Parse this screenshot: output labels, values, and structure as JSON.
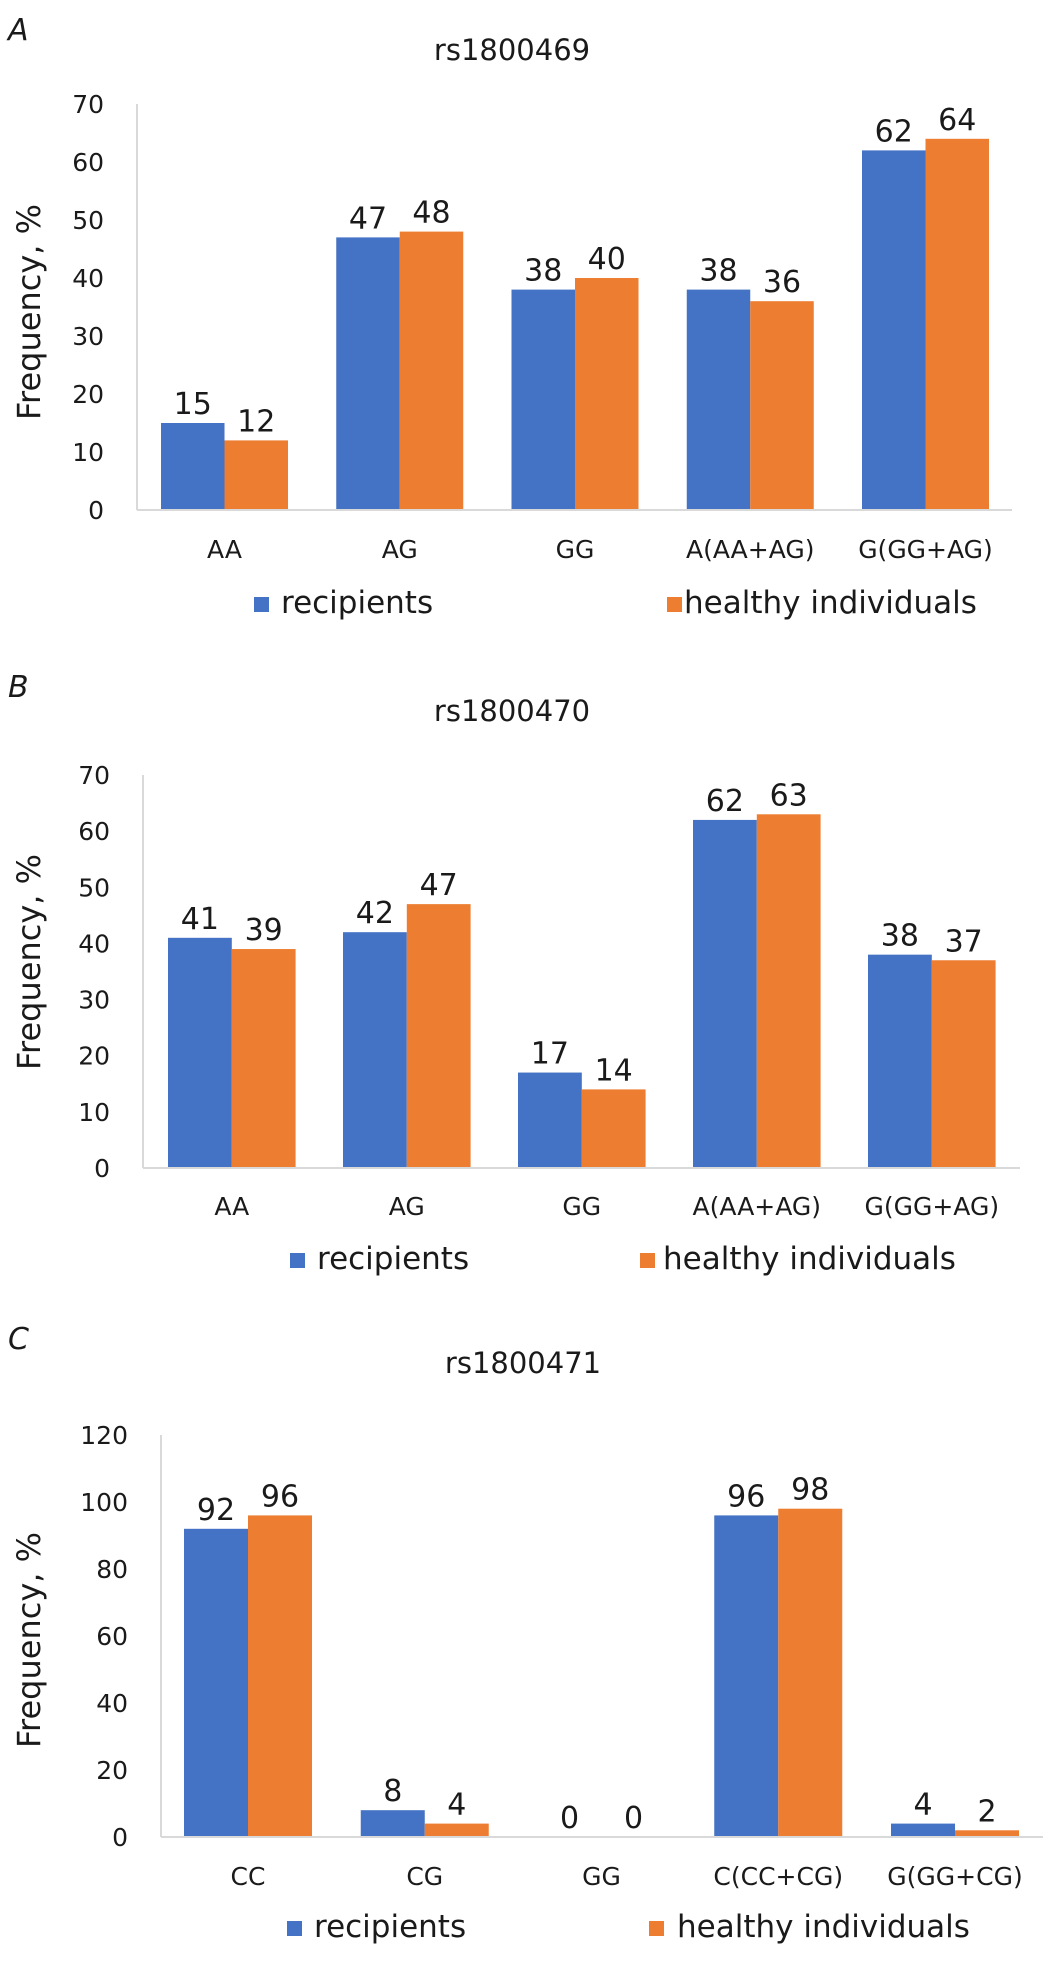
{
  "colors": {
    "recipients": "#4472c4",
    "healthy": "#ed7d31",
    "axis": "#d9d9d9",
    "text": "#1a1a1a"
  },
  "chart_data": [
    {
      "type": "bar",
      "panel": "A",
      "title": "rs1800469",
      "xlabel": "",
      "ylabel": "Frequency, %",
      "ylim": [
        0,
        70
      ],
      "yticks": [
        0,
        10,
        20,
        30,
        40,
        50,
        60,
        70
      ],
      "grid": false,
      "legend_position": "bottom",
      "categories": [
        "AA",
        "AG",
        "GG",
        "A(AA+AG)",
        "G(GG+AG)"
      ],
      "series": [
        {
          "name": "recipients",
          "color": "#4472c4",
          "values": [
            15,
            47,
            38,
            38,
            62
          ]
        },
        {
          "name": "healthy individuals",
          "color": "#ed7d31",
          "values": [
            12,
            48,
            40,
            36,
            64
          ]
        }
      ]
    },
    {
      "type": "bar",
      "panel": "B",
      "title": "rs1800470",
      "xlabel": "",
      "ylabel": "Frequency, %",
      "ylim": [
        0,
        70
      ],
      "yticks": [
        0,
        10,
        20,
        30,
        40,
        50,
        60,
        70
      ],
      "grid": false,
      "legend_position": "bottom",
      "categories": [
        "AA",
        "AG",
        "GG",
        "A(AA+AG)",
        "G(GG+AG)"
      ],
      "series": [
        {
          "name": "recipients",
          "color": "#4472c4",
          "values": [
            41,
            42,
            17,
            62,
            38
          ]
        },
        {
          "name": "healthy individuals",
          "color": "#ed7d31",
          "values": [
            39,
            47,
            14,
            63,
            37
          ]
        }
      ]
    },
    {
      "type": "bar",
      "panel": "C",
      "title": "rs1800471",
      "xlabel": "",
      "ylabel": "Frequency, %",
      "ylim": [
        0,
        120
      ],
      "yticks": [
        0,
        20,
        40,
        60,
        80,
        100,
        120
      ],
      "grid": false,
      "legend_position": "bottom",
      "categories": [
        "CC",
        "CG",
        "GG",
        "C(CC+CG)",
        "G(GG+CG)"
      ],
      "series": [
        {
          "name": "recipients",
          "color": "#4472c4",
          "values": [
            92,
            8,
            0,
            96,
            4
          ]
        },
        {
          "name": "healthy individuals",
          "color": "#ed7d31",
          "values": [
            96,
            4,
            0,
            98,
            2
          ]
        }
      ]
    }
  ]
}
